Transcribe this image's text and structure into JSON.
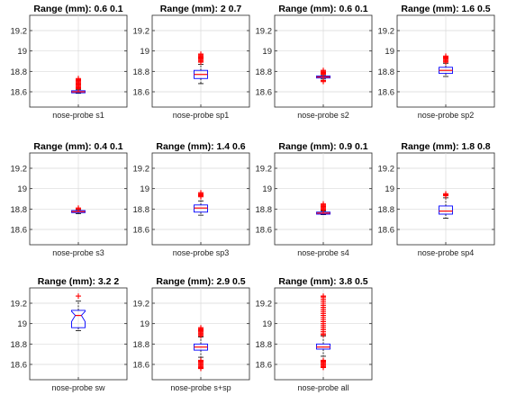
{
  "chart_data": [
    {
      "type": "boxplot",
      "title": "Range (mm): 0.6 0.1",
      "category": "nose-probe s1",
      "ylim": [
        18.45,
        19.35
      ],
      "yticks": [
        "18.6",
        "18.8",
        "19",
        "19.2"
      ],
      "grid": true,
      "notched": false,
      "box": {
        "q1": 18.59,
        "median": 18.6,
        "q3": 18.61,
        "whisker_low": 18.585,
        "whisker_high": 18.62
      },
      "outliers": [
        18.63,
        18.64,
        18.65,
        18.66,
        18.67,
        18.68,
        18.69,
        18.7,
        18.71,
        18.72,
        18.73
      ]
    },
    {
      "type": "boxplot",
      "title": "Range (mm): 2 0.7",
      "category": "nose-probe sp1",
      "ylim": [
        18.45,
        19.35
      ],
      "yticks": [
        "18.6",
        "18.8",
        "19",
        "19.2"
      ],
      "grid": true,
      "notched": false,
      "box": {
        "q1": 18.73,
        "median": 18.77,
        "q3": 18.81,
        "whisker_low": 18.68,
        "whisker_high": 18.87
      },
      "outliers": [
        18.89,
        18.9,
        18.91,
        18.92,
        18.93,
        18.94,
        18.95,
        18.96,
        18.97
      ]
    },
    {
      "type": "boxplot",
      "title": "Range (mm): 0.6 0.1",
      "category": "nose-probe s2",
      "ylim": [
        18.45,
        19.35
      ],
      "yticks": [
        "18.6",
        "18.8",
        "19",
        "19.2"
      ],
      "grid": true,
      "notched": false,
      "box": {
        "q1": 18.735,
        "median": 18.745,
        "q3": 18.755,
        "whisker_low": 18.725,
        "whisker_high": 18.765
      },
      "outliers": [
        18.7,
        18.71,
        18.77,
        18.78,
        18.79,
        18.8,
        18.81
      ]
    },
    {
      "type": "boxplot",
      "title": "Range (mm): 1.6 0.5",
      "category": "nose-probe sp2",
      "ylim": [
        18.45,
        19.35
      ],
      "yticks": [
        "18.6",
        "18.8",
        "19",
        "19.2"
      ],
      "grid": true,
      "notched": false,
      "box": {
        "q1": 18.78,
        "median": 18.81,
        "q3": 18.84,
        "whisker_low": 18.75,
        "whisker_high": 18.88
      },
      "outliers": [
        18.89,
        18.9,
        18.91,
        18.92,
        18.93,
        18.94,
        18.95
      ]
    },
    {
      "type": "boxplot",
      "title": "Range (mm): 0.4 0.1",
      "category": "nose-probe s3",
      "ylim": [
        18.45,
        19.35
      ],
      "yticks": [
        "18.6",
        "18.8",
        "19",
        "19.2"
      ],
      "grid": true,
      "notched": false,
      "box": {
        "q1": 18.765,
        "median": 18.775,
        "q3": 18.785,
        "whisker_low": 18.755,
        "whisker_high": 18.795
      },
      "outliers": [
        18.8,
        18.81
      ]
    },
    {
      "type": "boxplot",
      "title": "Range (mm): 1.4 0.6",
      "category": "nose-probe sp3",
      "ylim": [
        18.45,
        19.35
      ],
      "yticks": [
        "18.6",
        "18.8",
        "19",
        "19.2"
      ],
      "grid": true,
      "notched": false,
      "box": {
        "q1": 18.77,
        "median": 18.81,
        "q3": 18.84,
        "whisker_low": 18.74,
        "whisker_high": 18.88
      },
      "outliers": [
        18.92,
        18.93,
        18.94,
        18.95,
        18.96
      ]
    },
    {
      "type": "boxplot",
      "title": "Range (mm): 0.9 0.1",
      "category": "nose-probe s4",
      "ylim": [
        18.45,
        19.35
      ],
      "yticks": [
        "18.6",
        "18.8",
        "19",
        "19.2"
      ],
      "grid": true,
      "notched": false,
      "box": {
        "q1": 18.75,
        "median": 18.76,
        "q3": 18.77,
        "whisker_low": 18.745,
        "whisker_high": 18.78
      },
      "outliers": [
        18.79,
        18.8,
        18.81,
        18.82,
        18.83,
        18.84,
        18.85
      ]
    },
    {
      "type": "boxplot",
      "title": "Range (mm): 1.8 0.8",
      "category": "nose-probe sp4",
      "ylim": [
        18.45,
        19.35
      ],
      "yticks": [
        "18.6",
        "18.8",
        "19",
        "19.2"
      ],
      "grid": true,
      "notched": false,
      "box": {
        "q1": 18.75,
        "median": 18.78,
        "q3": 18.83,
        "whisker_low": 18.71,
        "whisker_high": 18.91
      },
      "outliers": [
        18.93,
        18.94,
        18.95
      ]
    },
    {
      "type": "boxplot",
      "title": "Range (mm): 3.2 2",
      "category": "nose-probe sw",
      "ylim": [
        18.45,
        19.35
      ],
      "yticks": [
        "18.6",
        "18.8",
        "19",
        "19.2"
      ],
      "grid": true,
      "notched": true,
      "box": {
        "q1": 18.96,
        "median": 19.08,
        "q3": 19.13,
        "whisker_low": 18.93,
        "whisker_high": 19.22,
        "notch_low": 19.02,
        "notch_high": 19.12
      },
      "outliers": [
        19.27
      ]
    },
    {
      "type": "boxplot",
      "title": "Range (mm): 2.9 0.5",
      "category": "nose-probe s+sp",
      "ylim": [
        18.45,
        19.35
      ],
      "yticks": [
        "18.6",
        "18.8",
        "19",
        "19.2"
      ],
      "grid": true,
      "notched": false,
      "box": {
        "q1": 18.74,
        "median": 18.77,
        "q3": 18.8,
        "whisker_low": 18.67,
        "whisker_high": 18.87
      },
      "outliers": [
        18.56,
        18.57,
        18.58,
        18.59,
        18.6,
        18.61,
        18.62,
        18.63,
        18.64,
        18.88,
        18.89,
        18.9,
        18.91,
        18.92,
        18.93,
        18.94,
        18.95,
        18.96
      ]
    },
    {
      "type": "boxplot",
      "title": "Range (mm): 3.8 0.5",
      "category": "nose-probe all",
      "ylim": [
        18.45,
        19.35
      ],
      "yticks": [
        "18.6",
        "18.8",
        "19",
        "19.2"
      ],
      "grid": true,
      "notched": false,
      "box": {
        "q1": 18.75,
        "median": 18.77,
        "q3": 18.8,
        "whisker_low": 18.68,
        "whisker_high": 18.88
      },
      "outliers": [
        18.57,
        18.58,
        18.59,
        18.6,
        18.61,
        18.62,
        18.63,
        18.64,
        18.89,
        18.9,
        18.92,
        18.94,
        18.96,
        18.98,
        19.0,
        19.02,
        19.04,
        19.06,
        19.08,
        19.1,
        19.12,
        19.14,
        19.16,
        19.18,
        19.2,
        19.22,
        19.24,
        19.26,
        19.27
      ]
    }
  ]
}
